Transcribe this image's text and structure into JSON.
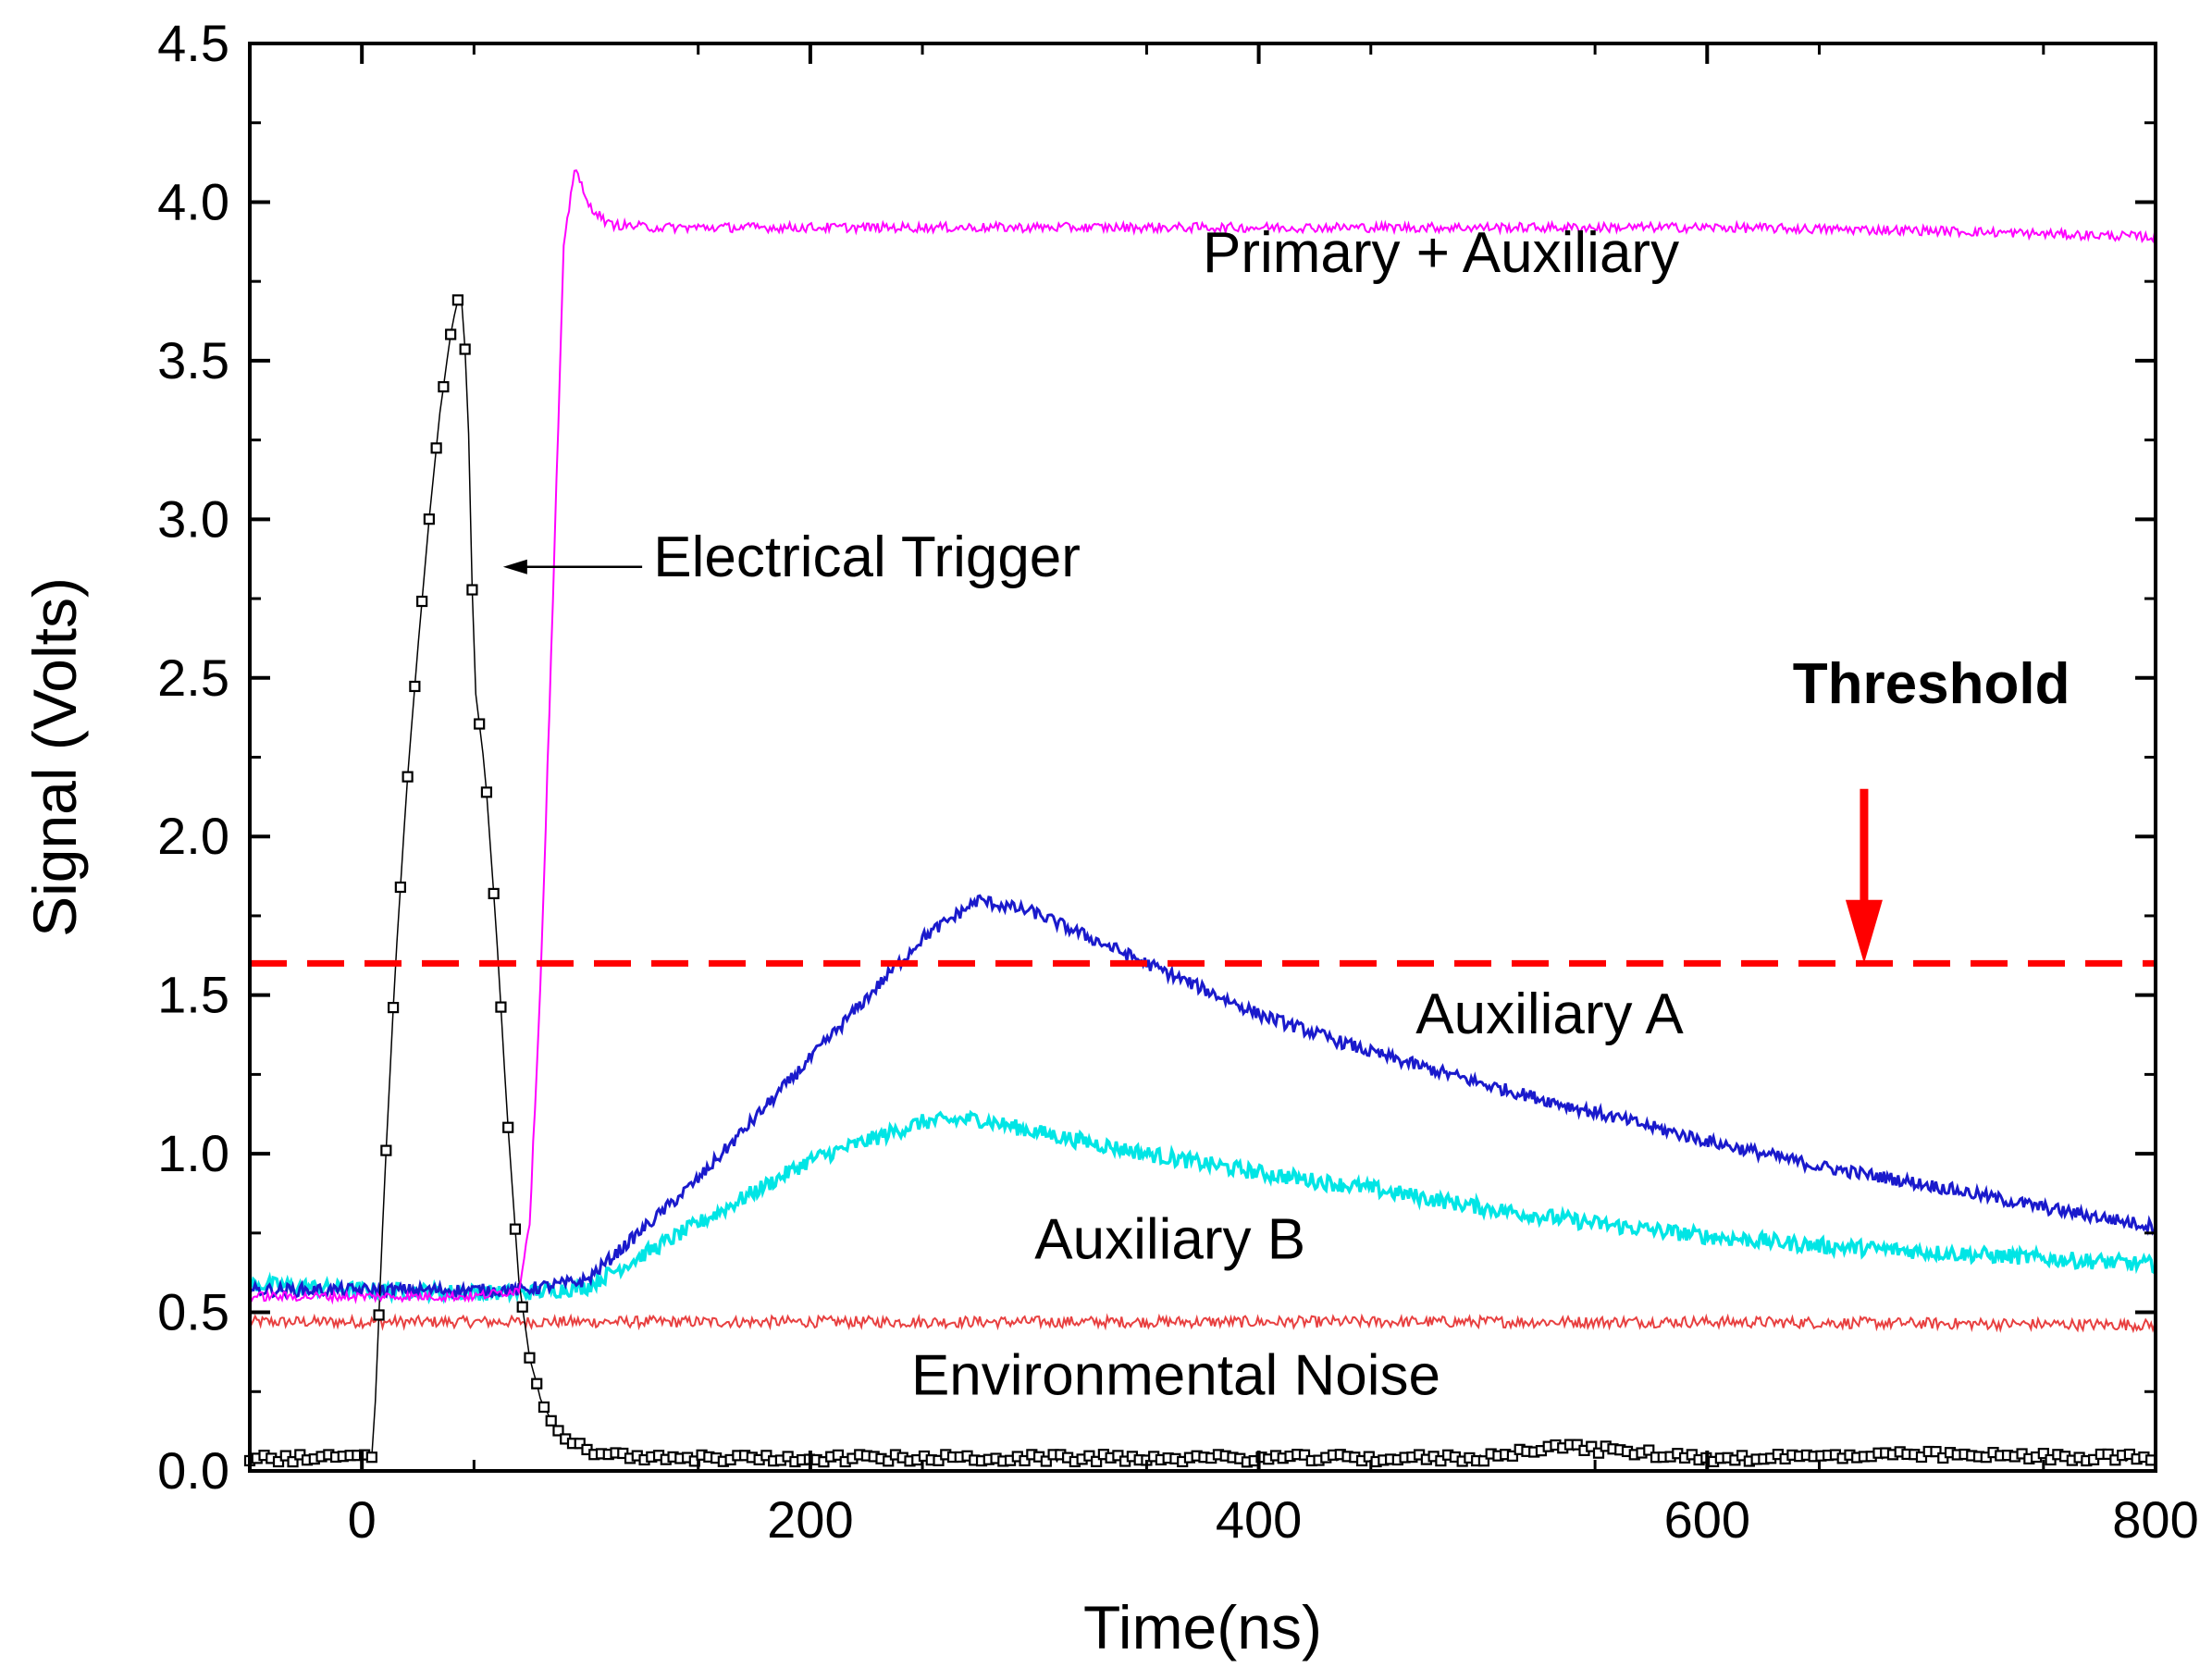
{
  "chart_data": {
    "type": "line",
    "title": "",
    "xlabel": "Time(ns)",
    "ylabel": "Signal (Volts)",
    "xlim": [
      -50,
      800
    ],
    "ylim": [
      0.0,
      4.5
    ],
    "xticks": [
      "0",
      "200",
      "400",
      "600",
      "800"
    ],
    "xtick_values": [
      0,
      200,
      400,
      600,
      800
    ],
    "yticks": [
      "0.0",
      "0.5",
      "1.0",
      "1.5",
      "2.0",
      "2.5",
      "3.0",
      "3.5",
      "4.0",
      "4.5"
    ],
    "ytick_values": [
      0.0,
      0.5,
      1.0,
      1.5,
      2.0,
      2.5,
      3.0,
      3.5,
      4.0,
      4.5
    ],
    "grid": false,
    "threshold": {
      "value": 1.6,
      "label": "Threshold",
      "color": "#ff0000",
      "arrow_x": 670
    },
    "series": [
      {
        "name": "Primary + Auxiliary",
        "color": "#ff00ff",
        "style": "line",
        "x": [
          -50,
          0,
          50,
          70,
          75,
          80,
          85,
          90,
          95,
          100,
          110,
          130,
          200,
          300,
          400,
          500,
          600,
          700,
          800
        ],
        "y": [
          0.55,
          0.55,
          0.55,
          0.57,
          0.8,
          1.6,
          2.7,
          3.85,
          4.12,
          4.0,
          3.93,
          3.92,
          3.92,
          3.92,
          3.92,
          3.92,
          3.92,
          3.91,
          3.89
        ],
        "noise": 0.015
      },
      {
        "name": "Auxiliary A",
        "color": "#1a1acc",
        "style": "line",
        "x": [
          -50,
          0,
          70,
          100,
          150,
          200,
          250,
          275,
          300,
          350,
          400,
          450,
          500,
          550,
          600,
          650,
          700,
          750,
          800
        ],
        "y": [
          0.57,
          0.57,
          0.57,
          0.6,
          0.92,
          1.3,
          1.68,
          1.8,
          1.76,
          1.6,
          1.44,
          1.32,
          1.22,
          1.13,
          1.04,
          0.96,
          0.9,
          0.83,
          0.77
        ],
        "noise": 0.02
      },
      {
        "name": "Auxiliary B",
        "color": "#00e5e5",
        "style": "line",
        "x": [
          -50,
          0,
          70,
          100,
          150,
          200,
          250,
          275,
          300,
          350,
          400,
          450,
          500,
          550,
          600,
          650,
          700,
          750,
          800
        ],
        "y": [
          0.59,
          0.57,
          0.56,
          0.58,
          0.78,
          0.98,
          1.1,
          1.11,
          1.07,
          1.0,
          0.94,
          0.89,
          0.83,
          0.78,
          0.74,
          0.71,
          0.69,
          0.67,
          0.65
        ],
        "noise": 0.025
      },
      {
        "name": "Environmental Noise",
        "color": "#e84040",
        "style": "line",
        "x": [
          -50,
          0,
          200,
          400,
          600,
          800
        ],
        "y": [
          0.47,
          0.47,
          0.47,
          0.47,
          0.47,
          0.46
        ],
        "noise": 0.018
      },
      {
        "name": "Electrical Trigger",
        "color": "#000000",
        "style": "markers",
        "x": [
          -50,
          0,
          5,
          10,
          15,
          20,
          25,
          30,
          35,
          40,
          43,
          45,
          48,
          50,
          55,
          60,
          65,
          70,
          75,
          80,
          85,
          90,
          100,
          110,
          120,
          150,
          200,
          300,
          400,
          500,
          530,
          600,
          700,
          800
        ],
        "y": [
          0.04,
          0.04,
          0.05,
          0.9,
          1.6,
          2.15,
          2.6,
          3.0,
          3.35,
          3.6,
          3.7,
          3.7,
          3.2,
          2.5,
          2.2,
          1.7,
          1.1,
          0.6,
          0.35,
          0.22,
          0.15,
          0.1,
          0.07,
          0.05,
          0.04,
          0.04,
          0.04,
          0.04,
          0.04,
          0.04,
          0.08,
          0.04,
          0.05,
          0.04
        ],
        "noise": 0.012
      }
    ],
    "annotations": [
      {
        "text": "Primary + Auxiliary",
        "x": 375,
        "y": 3.78
      },
      {
        "text": "Electrical Trigger",
        "x": 130,
        "y": 2.82,
        "arrow_to": [
          63,
          2.85
        ],
        "arrow_from": [
          125,
          2.85
        ]
      },
      {
        "text": "Auxiliary A",
        "x": 470,
        "y": 1.38
      },
      {
        "text": "Auxiliary  B",
        "x": 300,
        "y": 0.67
      },
      {
        "text": "Environmental Noise",
        "x": 245,
        "y": 0.24
      }
    ]
  }
}
